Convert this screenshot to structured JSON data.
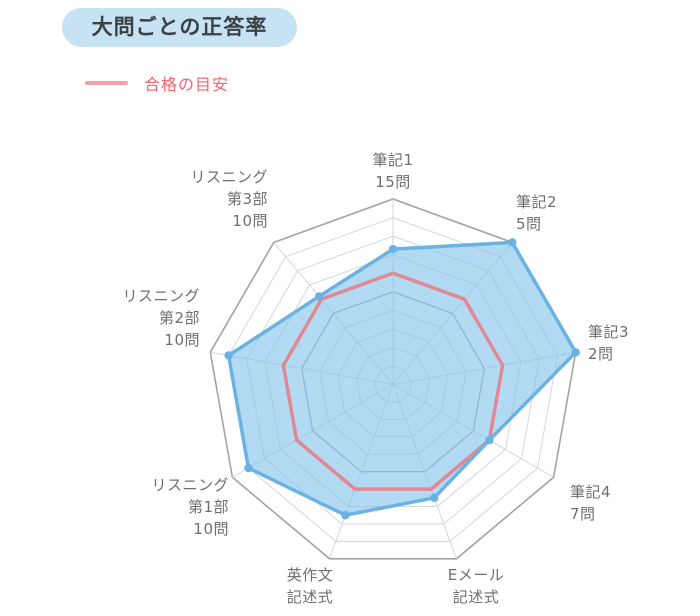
{
  "header": {
    "title": "大問ごとの正答率",
    "bg_color": "#c6e2f3",
    "text_color": "#3b4047"
  },
  "legend": {
    "label": "合格の目安",
    "text_color": "#f8636f",
    "line_color": "#f5a0a8"
  },
  "chart_data": {
    "type": "radar",
    "title": "大問ごとの正答率",
    "axes_count": 9,
    "start_axis": "top",
    "direction": "clockwise",
    "categories": [
      "筆記1 15問",
      "筆記2 5問",
      "筆記3 2問",
      "筆記4 7問",
      "Eメール 記述式",
      "英作文 記述式",
      "リスニング 第1部 10問",
      "リスニング 第2部 10問",
      "リスニング 第3部 10問"
    ],
    "axis_label_lines": [
      [
        "筆記1",
        "15問"
      ],
      [
        "筆記2",
        "5問"
      ],
      [
        "筆記3",
        "2問"
      ],
      [
        "筆記4",
        "7問"
      ],
      [
        "Eメール",
        "記述式"
      ],
      [
        "英作文",
        "記述式"
      ],
      [
        "リスニング",
        "第1部",
        "10問"
      ],
      [
        "リスニング",
        "第2部",
        "10問"
      ],
      [
        "リスニング",
        "第3部",
        "10問"
      ]
    ],
    "series": [
      {
        "name": "正答率",
        "values": [
          73,
          100,
          100,
          60,
          65,
          75,
          90,
          90,
          62
        ],
        "stroke": "#6ab2e2",
        "fill": "rgba(130,196,236,0.62)",
        "show_points": true
      },
      {
        "name": "合格の目安",
        "values": [
          60,
          60,
          60,
          60,
          60,
          60,
          60,
          60,
          60
        ],
        "stroke": "#e08894",
        "fill": "none",
        "show_points": false
      }
    ],
    "scale": {
      "min": 0,
      "max": 100,
      "rings": 10,
      "emphasized_rings": [
        50,
        100
      ]
    },
    "grid": {
      "light_color": "#d6d6d6",
      "dark_color": "#a3a3a3",
      "axis_label_color": "#6f6f6f"
    },
    "legend_position": "top-left"
  }
}
